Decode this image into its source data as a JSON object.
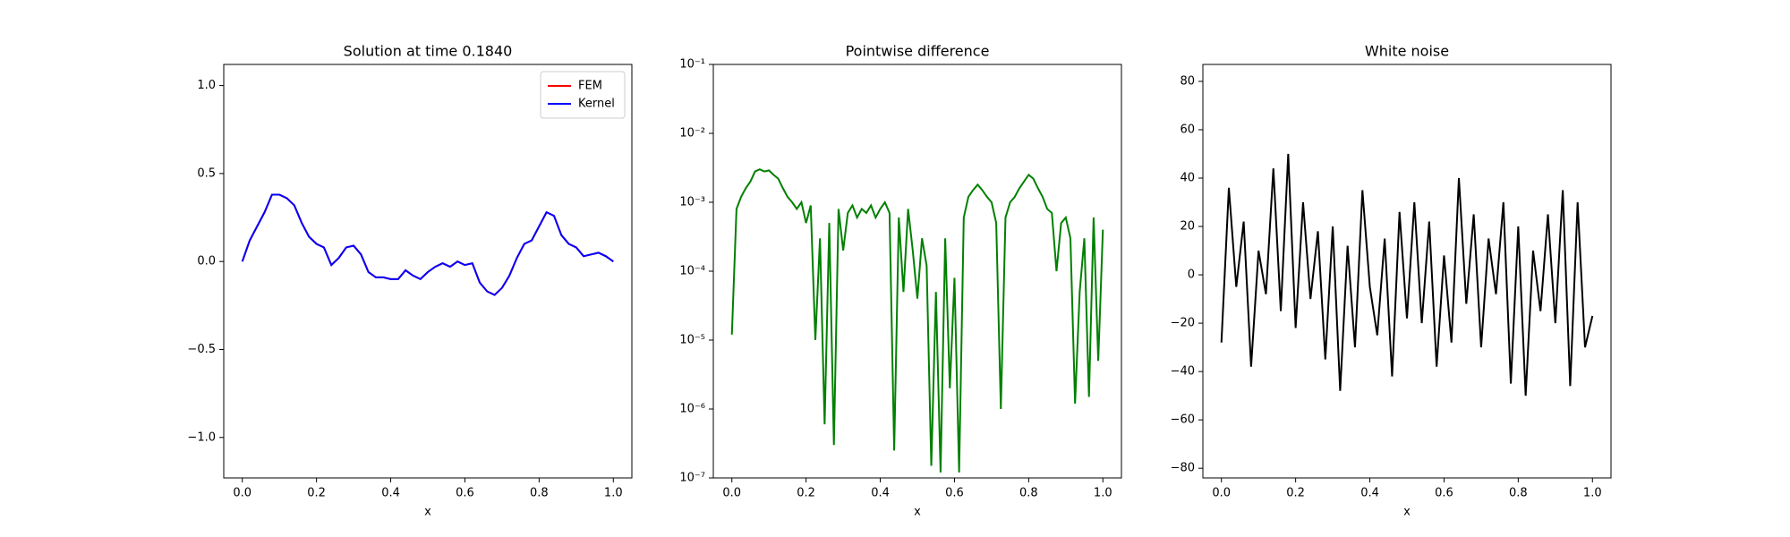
{
  "chart_data": [
    {
      "type": "line",
      "title": "Solution at time 0.1840",
      "x_label": "x",
      "legend": "upper right",
      "x": [
        0,
        0.02,
        0.04,
        0.06,
        0.08,
        0.1,
        0.12,
        0.14,
        0.16,
        0.18,
        0.2,
        0.22,
        0.24,
        0.26,
        0.28,
        0.3,
        0.32,
        0.34,
        0.36,
        0.38,
        0.4,
        0.42,
        0.44,
        0.46,
        0.48,
        0.5,
        0.52,
        0.54,
        0.56,
        0.58,
        0.6,
        0.62,
        0.64,
        0.66,
        0.68,
        0.7,
        0.72,
        0.74,
        0.76,
        0.78,
        0.8,
        0.82,
        0.84,
        0.86,
        0.88,
        0.9,
        0.92,
        0.94,
        0.96,
        0.98,
        1.0
      ],
      "series": [
        {
          "name": "FEM",
          "color": "#ff0000",
          "values": [
            0,
            0.12,
            0.2,
            0.28,
            0.38,
            0.38,
            0.36,
            0.32,
            0.22,
            0.14,
            0.1,
            0.08,
            -0.02,
            0.02,
            0.08,
            0.09,
            0.04,
            -0.06,
            -0.09,
            -0.09,
            -0.1,
            -0.1,
            -0.05,
            -0.08,
            -0.1,
            -0.06,
            -0.03,
            -0.01,
            -0.03,
            0,
            -0.02,
            -0.01,
            -0.12,
            -0.17,
            -0.19,
            -0.15,
            -0.08,
            0.02,
            0.1,
            0.12,
            0.2,
            0.28,
            0.26,
            0.15,
            0.1,
            0.08,
            0.03,
            0.04,
            0.05,
            0.03,
            0
          ]
        },
        {
          "name": "Kernel",
          "color": "#0000ff",
          "values": [
            0,
            0.12,
            0.2,
            0.28,
            0.38,
            0.38,
            0.36,
            0.32,
            0.22,
            0.14,
            0.1,
            0.08,
            -0.02,
            0.02,
            0.08,
            0.09,
            0.04,
            -0.06,
            -0.09,
            -0.09,
            -0.1,
            -0.1,
            -0.05,
            -0.08,
            -0.1,
            -0.06,
            -0.03,
            -0.01,
            -0.03,
            0,
            -0.02,
            -0.01,
            -0.12,
            -0.17,
            -0.19,
            -0.15,
            -0.08,
            0.02,
            0.1,
            0.12,
            0.2,
            0.28,
            0.26,
            0.15,
            0.1,
            0.08,
            0.03,
            0.04,
            0.05,
            0.03,
            0
          ]
        }
      ],
      "xlim": [
        -0.05,
        1.05
      ],
      "xticks": [
        {
          "value": 0,
          "label": "0.0"
        },
        {
          "value": 0.2,
          "label": "0.2"
        },
        {
          "value": 0.4,
          "label": "0.4"
        },
        {
          "value": 0.6,
          "label": "0.6"
        },
        {
          "value": 0.8,
          "label": "0.8"
        },
        {
          "value": 1,
          "label": "1.0"
        }
      ],
      "ylim": [
        -1.23,
        1.12
      ],
      "yticks": [
        {
          "value": -1,
          "label": "−1.0"
        },
        {
          "value": -0.5,
          "label": "−0.5"
        },
        {
          "value": 0,
          "label": "0.0"
        },
        {
          "value": 0.5,
          "label": "0.5"
        },
        {
          "value": 1,
          "label": "1.0"
        }
      ]
    },
    {
      "type": "line",
      "title": "Pointwise difference",
      "x_label": "x",
      "log_scale": true,
      "x": [
        0,
        0.0125,
        0.025,
        0.0375,
        0.05,
        0.0625,
        0.075,
        0.0875,
        0.1,
        0.1125,
        0.125,
        0.1375,
        0.15,
        0.1625,
        0.175,
        0.1875,
        0.2,
        0.2125,
        0.225,
        0.2375,
        0.25,
        0.2625,
        0.275,
        0.2875,
        0.3,
        0.3125,
        0.325,
        0.3375,
        0.35,
        0.3625,
        0.375,
        0.3875,
        0.4,
        0.4125,
        0.425,
        0.4375,
        0.45,
        0.4625,
        0.475,
        0.4875,
        0.5,
        0.5125,
        0.525,
        0.5375,
        0.55,
        0.5625,
        0.575,
        0.5875,
        0.6,
        0.6125,
        0.625,
        0.6375,
        0.65,
        0.6625,
        0.675,
        0.6875,
        0.7,
        0.7125,
        0.725,
        0.7375,
        0.75,
        0.7625,
        0.775,
        0.7875,
        0.8,
        0.8125,
        0.825,
        0.8375,
        0.85,
        0.8625,
        0.875,
        0.8875,
        0.9,
        0.9125,
        0.925,
        0.9375,
        0.95,
        0.9625,
        0.975,
        0.9875,
        1.0
      ],
      "series": [
        {
          "color": "#008000",
          "values": [
            1.2e-05,
            0.0008,
            0.0012,
            0.0016,
            0.002,
            0.0028,
            0.003,
            0.0028,
            0.0029,
            0.0025,
            0.0022,
            0.0016,
            0.0012,
            0.001,
            0.0008,
            0.001,
            0.0005,
            0.0009,
            1e-05,
            0.0003,
            6e-07,
            0.0005,
            3e-07,
            0.0008,
            0.0002,
            0.0007,
            0.0009,
            0.0006,
            0.0008,
            0.0007,
            0.0009,
            0.0006,
            0.0008,
            0.001,
            0.0007,
            2.5e-07,
            0.0006,
            5e-05,
            0.0008,
            0.0002,
            4e-05,
            0.0003,
            0.00012,
            1.5e-07,
            5e-05,
            1.2e-07,
            0.0003,
            2e-06,
            8e-05,
            1.2e-07,
            0.0006,
            0.0012,
            0.0015,
            0.0018,
            0.0015,
            0.0012,
            0.001,
            0.0005,
            1e-06,
            0.0006,
            0.001,
            0.0012,
            0.0016,
            0.002,
            0.0025,
            0.0022,
            0.0016,
            0.0012,
            0.0008,
            0.0007,
            0.0001,
            0.0005,
            0.0006,
            0.0003,
            1.2e-06,
            5e-05,
            0.0003,
            1.5e-06,
            0.0006,
            5e-06,
            0.0004
          ]
        }
      ],
      "xlim": [
        -0.05,
        1.05
      ],
      "xticks": [
        {
          "value": 0,
          "label": "0.0"
        },
        {
          "value": 0.2,
          "label": "0.2"
        },
        {
          "value": 0.4,
          "label": "0.4"
        },
        {
          "value": 0.6,
          "label": "0.6"
        },
        {
          "value": 0.8,
          "label": "0.8"
        },
        {
          "value": 1,
          "label": "1.0"
        }
      ],
      "ylim": [
        1e-07,
        0.1
      ],
      "yticks": [
        {
          "value": 1e-07,
          "label": "10⁻⁷"
        },
        {
          "value": 1e-06,
          "label": "10⁻⁶"
        },
        {
          "value": 1e-05,
          "label": "10⁻⁵"
        },
        {
          "value": 0.0001,
          "label": "10⁻⁴"
        },
        {
          "value": 0.001,
          "label": "10⁻³"
        },
        {
          "value": 0.01,
          "label": "10⁻²"
        },
        {
          "value": 0.1,
          "label": "10⁻¹"
        }
      ]
    },
    {
      "type": "line",
      "title": "White noise",
      "x_label": "x",
      "x": [
        0,
        0.02,
        0.04,
        0.06,
        0.08,
        0.1,
        0.12,
        0.14,
        0.16,
        0.18,
        0.2,
        0.22,
        0.24,
        0.26,
        0.28,
        0.3,
        0.32,
        0.34,
        0.36,
        0.38,
        0.4,
        0.42,
        0.44,
        0.46,
        0.48,
        0.5,
        0.52,
        0.54,
        0.56,
        0.58,
        0.6,
        0.62,
        0.64,
        0.66,
        0.68,
        0.7,
        0.72,
        0.74,
        0.76,
        0.78,
        0.8,
        0.82,
        0.84,
        0.86,
        0.88,
        0.9,
        0.92,
        0.94,
        0.96,
        0.98,
        1.0
      ],
      "series": [
        {
          "color": "#000000",
          "values": [
            -28,
            36,
            -5,
            22,
            -38,
            10,
            -8,
            44,
            -15,
            50,
            -22,
            30,
            -10,
            18,
            -35,
            20,
            -48,
            12,
            -30,
            35,
            -5,
            -25,
            15,
            -42,
            26,
            -18,
            30,
            -20,
            22,
            -38,
            8,
            -28,
            40,
            -12,
            25,
            -30,
            15,
            -8,
            30,
            -45,
            20,
            -50,
            10,
            -15,
            25,
            -20,
            35,
            -46,
            30,
            -30,
            -17
          ]
        }
      ],
      "xlim": [
        -0.05,
        1.05
      ],
      "xticks": [
        {
          "value": 0,
          "label": "0.0"
        },
        {
          "value": 0.2,
          "label": "0.2"
        },
        {
          "value": 0.4,
          "label": "0.4"
        },
        {
          "value": 0.6,
          "label": "0.6"
        },
        {
          "value": 0.8,
          "label": "0.8"
        },
        {
          "value": 1,
          "label": "1.0"
        }
      ],
      "ylim": [
        -84,
        87
      ],
      "yticks": [
        {
          "value": -80,
          "label": "−80"
        },
        {
          "value": -60,
          "label": "−60"
        },
        {
          "value": -40,
          "label": "−40"
        },
        {
          "value": -20,
          "label": "−20"
        },
        0,
        20,
        40,
        60,
        80
      ]
    }
  ]
}
